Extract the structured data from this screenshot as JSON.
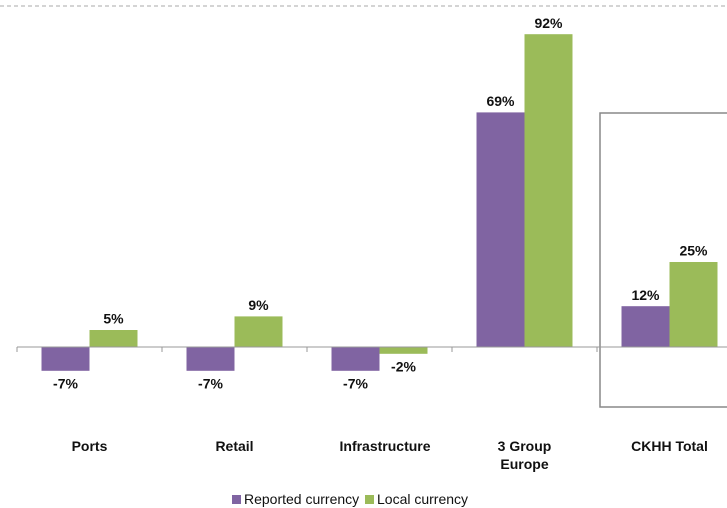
{
  "chart_data": {
    "type": "bar",
    "categories": [
      "Ports",
      "Retail",
      "Infrastructure",
      "3 Group Europe",
      "CKHH Total"
    ],
    "series": [
      {
        "name": "Reported currency",
        "color": "#8064a2",
        "values": [
          -7,
          -7,
          -7,
          69,
          12
        ],
        "value_labels": [
          "-7%",
          "-7%",
          "-7%",
          "69%",
          "12%"
        ]
      },
      {
        "name": "Local currency",
        "color": "#9bbb59",
        "values": [
          5,
          9,
          -2,
          92,
          25
        ],
        "value_labels": [
          "5%",
          "9%",
          "-2%",
          "92%",
          "25%"
        ]
      }
    ],
    "ylim": [
      -30,
      100
    ],
    "legend": "bottom"
  }
}
